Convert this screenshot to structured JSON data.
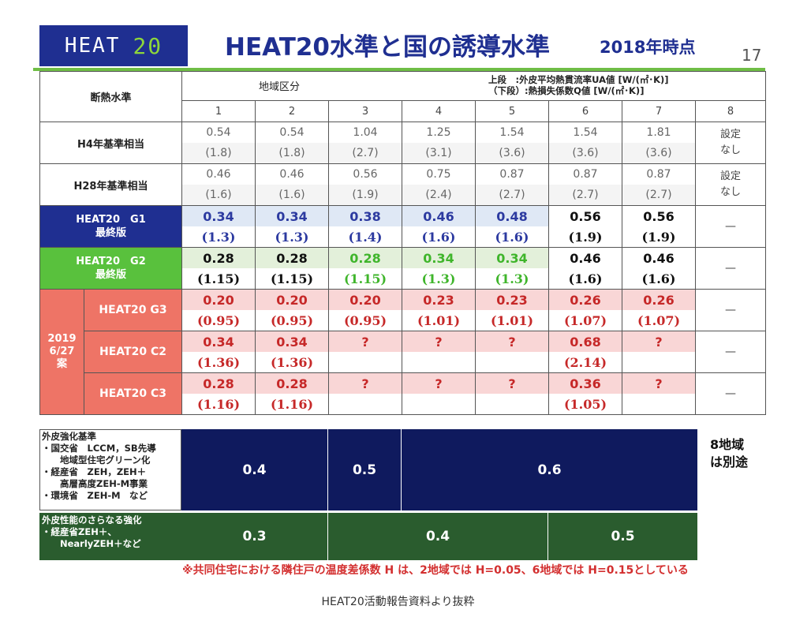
{
  "header": {
    "logo_text": "HEAT",
    "logo_num": "20",
    "title": "HEAT20水準と国の誘導水準",
    "title_year": "2018年時点",
    "slide_number": "17",
    "colors": {
      "navy": "#1f2f91",
      "green": "#6fbe45",
      "red": "#c62828"
    }
  },
  "table": {
    "corner_label": "断熱水準",
    "region_label": "地域区分",
    "legend_line1": "上段　:外皮平均熱貫流率UA値 [W/(㎡･K)]",
    "legend_line2": "（下段）:熱損失係数Q値 [W/(㎡･K)]",
    "columns": [
      "1",
      "2",
      "3",
      "4",
      "5",
      "6",
      "7",
      "8"
    ],
    "rows": [
      {
        "label": "H4年基準相当",
        "ua": [
          "0.54",
          "0.54",
          "1.04",
          "1.25",
          "1.54",
          "1.54",
          "1.81"
        ],
        "q": [
          "(1.8)",
          "(1.8)",
          "(2.7)",
          "(3.1)",
          "(3.6)",
          "(3.6)",
          "(3.6)"
        ],
        "col8": "設定\nなし"
      },
      {
        "label": "H28年基準相当",
        "ua": [
          "0.46",
          "0.46",
          "0.56",
          "0.75",
          "0.87",
          "0.87",
          "0.87"
        ],
        "q": [
          "(1.6)",
          "(1.6)",
          "(1.9)",
          "(2.4)",
          "(2.7)",
          "(2.7)",
          "(2.7)"
        ],
        "col8": "設定\nなし"
      },
      {
        "label": "HEAT20　G1\n最終版",
        "ua": [
          "0.34",
          "0.34",
          "0.38",
          "0.46",
          "0.48",
          "0.56",
          "0.56"
        ],
        "q": [
          "(1.3)",
          "(1.3)",
          "(1.4)",
          "(1.6)",
          "(1.6)",
          "(1.9)",
          "(1.9)"
        ],
        "col8": "—"
      },
      {
        "label": "HEAT20　G2\n最終版",
        "ua": [
          "0.28",
          "0.28",
          "0.28",
          "0.34",
          "0.34",
          "0.46",
          "0.46"
        ],
        "q": [
          "(1.15)",
          "(1.15)",
          "(1.15)",
          "(1.3)",
          "(1.3)",
          "(1.6)",
          "(1.6)"
        ],
        "col8": "—"
      },
      {
        "label": "HEAT20 G3",
        "ua": [
          "0.20",
          "0.20",
          "0.20",
          "0.23",
          "0.23",
          "0.26",
          "0.26"
        ],
        "q": [
          "(0.95)",
          "(0.95)",
          "(0.95)",
          "(1.01)",
          "(1.01)",
          "(1.07)",
          "(1.07)"
        ],
        "col8": "—"
      },
      {
        "label": "HEAT20 C2",
        "ua": [
          "0.34",
          "0.34",
          "?",
          "?",
          "?",
          "0.68",
          "?"
        ],
        "q": [
          "(1.36)",
          "(1.36)",
          "",
          "",
          "",
          "(2.14)",
          ""
        ],
        "col8": "—"
      },
      {
        "label": "HEAT20 C3",
        "ua": [
          "0.28",
          "0.28",
          "?",
          "?",
          "?",
          "0.36",
          "?"
        ],
        "q": [
          "(1.16)",
          "(1.16)",
          "",
          "",
          "",
          "(1.05)",
          ""
        ],
        "col8": "—"
      }
    ],
    "proposal_label": "2019\n6/27\n案"
  },
  "standards": {
    "reinforced_label": "外皮強化基準\n・国交省　LCCM，SB先導\n　　地域型住宅グリーン化\n・経産省　ZEH，ZEH＋\n　　高層高度ZEH-M事業\n・環境省　ZEH-M　など",
    "reinforced_values": [
      "0.4",
      "0.5",
      "0.6"
    ],
    "region8_note": "8地域\nは別途",
    "further_label": "外皮性能のさらなる強化\n・経産省ZEH＋、\n　　NearlyZEH＋など",
    "further_values": [
      "0.3",
      "0.4",
      "0.5"
    ]
  },
  "footnote": "※共同住宅における隣住戸の温度差係数 H は、2地域では H=0.05、6地域では H=0.15としている",
  "source": "HEAT20活動報告資料より抜粋"
}
